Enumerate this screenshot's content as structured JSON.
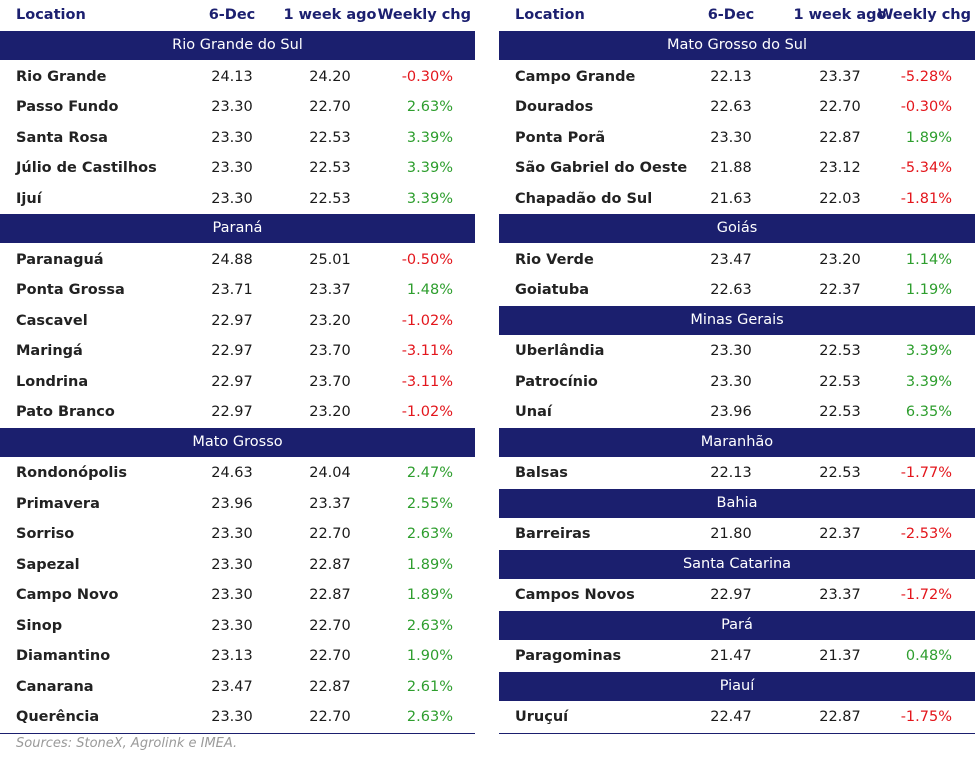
{
  "tables": [
    {
      "header": [
        "Location",
        "6-Dec",
        "1 week ago",
        "Weekly chg"
      ],
      "sections": [
        {
          "title": "Rio Grande do Sul",
          "rows": [
            [
              "Rio Grande",
              "24.13",
              "24.20",
              "-0.30%"
            ],
            [
              "Passo Fundo",
              "23.30",
              "22.70",
              "2.63%"
            ],
            [
              "Santa Rosa",
              "23.30",
              "22.53",
              "3.39%"
            ],
            [
              "Júlio de Castilhos",
              "23.30",
              "22.53",
              "3.39%"
            ],
            [
              "Ijuí",
              "23.30",
              "22.53",
              "3.39%"
            ]
          ]
        },
        {
          "title": "Paraná",
          "rows": [
            [
              "Paranaguá",
              "24.88",
              "25.01",
              "-0.50%"
            ],
            [
              "Ponta Grossa",
              "23.71",
              "23.37",
              "1.48%"
            ],
            [
              "Cascavel",
              "22.97",
              "23.20",
              "-1.02%"
            ],
            [
              "Maringá",
              "22.97",
              "23.70",
              "-3.11%"
            ],
            [
              "Londrina",
              "22.97",
              "23.70",
              "-3.11%"
            ],
            [
              "Pato Branco",
              "22.97",
              "23.20",
              "-1.02%"
            ]
          ]
        },
        {
          "title": "Mato Grosso",
          "rows": [
            [
              "Rondonópolis",
              "24.63",
              "24.04",
              "2.47%"
            ],
            [
              "Primavera",
              "23.96",
              "23.37",
              "2.55%"
            ],
            [
              "Sorriso",
              "23.30",
              "22.70",
              "2.63%"
            ],
            [
              "Sapezal",
              "23.30",
              "22.87",
              "1.89%"
            ],
            [
              "Campo Novo",
              "23.30",
              "22.87",
              "1.89%"
            ],
            [
              "Sinop",
              "23.30",
              "22.70",
              "2.63%"
            ],
            [
              "Diamantino",
              "23.13",
              "22.70",
              "1.90%"
            ],
            [
              "Canarana",
              "23.47",
              "22.87",
              "2.61%"
            ],
            [
              "Querência",
              "23.30",
              "22.70",
              "2.63%"
            ]
          ]
        }
      ]
    },
    {
      "header": [
        "Location",
        "6-Dec",
        "1 week ago",
        "Weekly chg"
      ],
      "sections": [
        {
          "title": "Mato Grosso do Sul",
          "rows": [
            [
              "Campo Grande",
              "22.13",
              "23.37",
              "-5.28%"
            ],
            [
              "Dourados",
              "22.63",
              "22.70",
              "-0.30%"
            ],
            [
              "Ponta Porã",
              "23.30",
              "22.87",
              "1.89%"
            ],
            [
              "São Gabriel do Oeste",
              "21.88",
              "23.12",
              "-5.34%"
            ],
            [
              "Chapadão do Sul",
              "21.63",
              "22.03",
              "-1.81%"
            ]
          ]
        },
        {
          "title": "Goiás",
          "rows": [
            [
              "Rio Verde",
              "23.47",
              "23.20",
              "1.14%"
            ],
            [
              "Goiatuba",
              "22.63",
              "22.37",
              "1.19%"
            ]
          ]
        },
        {
          "title": "Minas Gerais",
          "rows": [
            [
              "Uberlândia",
              "23.30",
              "22.53",
              "3.39%"
            ],
            [
              "Patrocínio",
              "23.30",
              "22.53",
              "3.39%"
            ],
            [
              "Unaí",
              "23.96",
              "22.53",
              "6.35%"
            ]
          ]
        },
        {
          "title": "Maranhão",
          "rows": [
            [
              "Balsas",
              "22.13",
              "22.53",
              "-1.77%"
            ]
          ]
        },
        {
          "title": "Bahia",
          "rows": [
            [
              "Barreiras",
              "21.80",
              "22.37",
              "-2.53%"
            ]
          ]
        },
        {
          "title": "Santa Catarina",
          "rows": [
            [
              "Campos Novos",
              "22.97",
              "23.37",
              "-1.72%"
            ]
          ]
        },
        {
          "title": "Pará",
          "rows": [
            [
              "Paragominas",
              "21.47",
              "21.37",
              "0.48%"
            ]
          ]
        },
        {
          "title": "Piauí",
          "rows": [
            [
              "Uruçuí",
              "22.47",
              "22.87",
              "-1.75%"
            ]
          ]
        }
      ]
    }
  ],
  "source": "Sources: StoneX, Agrolink e IMEA."
}
